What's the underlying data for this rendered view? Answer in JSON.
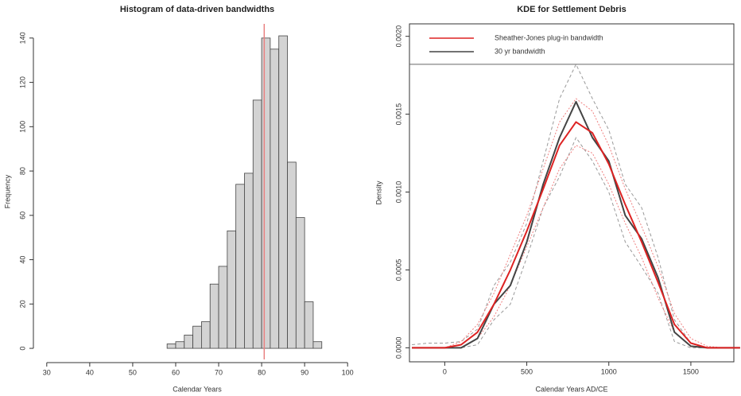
{
  "chart_data": [
    {
      "type": "histogram",
      "title": "Histogram of data-driven bandwidths",
      "x_label": "Calendar Years",
      "y_label": "Frequency",
      "bins": [
        58,
        60,
        62,
        64,
        66,
        68,
        70,
        72,
        74,
        76,
        78,
        80,
        82,
        84,
        86,
        88,
        90,
        92,
        94
      ],
      "counts": [
        2,
        3,
        6,
        10,
        12,
        29,
        37,
        53,
        74,
        79,
        112,
        140,
        135,
        141,
        84,
        59,
        21,
        3
      ],
      "color": "#d3d3d3",
      "vline": 80.6,
      "vline_color": "#e88080",
      "xlim": [
        28,
        102
      ],
      "ylim": [
        -5,
        146.4
      ],
      "xticks": [
        30,
        40,
        50,
        60,
        70,
        80,
        90,
        100
      ],
      "yticks": [
        0,
        20,
        40,
        60,
        80,
        100,
        120,
        140
      ]
    },
    {
      "type": "line",
      "title": "KDE for Settlement Debris",
      "x_label": "Calendar Years AD/CE",
      "y_label": "Density",
      "x": [
        -200,
        -100,
        0,
        100,
        200,
        300,
        400,
        500,
        600,
        700,
        800,
        900,
        1000,
        1100,
        1200,
        1300,
        1400,
        1500,
        1600,
        1700,
        1800
      ],
      "series": [
        {
          "color": "#999999",
          "dash": "4,3",
          "values": [
            2e-05,
            3e-05,
            3e-05,
            4e-05,
            0.00012,
            0.0004,
            0.00055,
            0.0008,
            0.0012,
            0.0016,
            0.00182,
            0.0016,
            0.0014,
            0.00105,
            0.0009,
            0.00058,
            0.00018,
            3e-05,
            0,
            0,
            0
          ]
        },
        {
          "color": "#999999",
          "dash": "4,3",
          "values": [
            0,
            0,
            0,
            0,
            2e-05,
            0.00018,
            0.00028,
            0.00058,
            0.0009,
            0.0011,
            0.00135,
            0.0012,
            0.001,
            0.00068,
            0.00052,
            0.00035,
            4e-05,
            0,
            0,
            0,
            0
          ]
        },
        {
          "color": "#f08080",
          "dash": "2,2",
          "values": [
            0,
            0,
            0,
            4e-05,
            0.00015,
            0.00035,
            0.0006,
            0.00085,
            0.00115,
            0.00145,
            0.0016,
            0.00152,
            0.0013,
            0.00102,
            0.00078,
            0.00052,
            0.00022,
            6e-05,
            1e-05,
            0,
            0
          ]
        },
        {
          "color": "#f08080",
          "dash": "2,2",
          "values": [
            0,
            0,
            0,
            0,
            6e-05,
            0.0002,
            0.0004,
            0.00065,
            0.0009,
            0.00115,
            0.0013,
            0.00125,
            0.00105,
            0.0008,
            0.00058,
            0.00032,
            0.0001,
            1e-05,
            0,
            0,
            0
          ]
        },
        {
          "name": "30 yr bandwidth",
          "color": "#444444",
          "width": 2,
          "values": [
            0,
            0,
            0,
            0,
            6e-05,
            0.00028,
            0.0004,
            0.00068,
            0.00105,
            0.00135,
            0.00158,
            0.00135,
            0.0012,
            0.00085,
            0.0007,
            0.00045,
            0.0001,
            1e-05,
            0,
            0,
            0
          ]
        },
        {
          "name": "Sheather-Jones plug-in bandwidth",
          "color": "#dd2222",
          "width": 2,
          "values": [
            0,
            0,
            0,
            2e-05,
            0.0001,
            0.00028,
            0.0005,
            0.00075,
            0.00102,
            0.0013,
            0.00145,
            0.00138,
            0.00118,
            0.00092,
            0.00068,
            0.00042,
            0.00015,
            3e-05,
            0,
            0,
            0
          ]
        }
      ],
      "hline": 0.00182,
      "legend": "top-left",
      "xlim": [
        -215,
        1762
      ],
      "ylim": [
        -9e-05,
        0.00208
      ],
      "xticks": [
        0,
        500,
        1000,
        1500
      ],
      "yticks": [
        {
          "value": 0,
          "label": "0.0000"
        },
        {
          "value": 0.0005,
          "label": "0.0005"
        },
        {
          "value": 0.001,
          "label": "0.0010"
        },
        {
          "value": 0.0015,
          "label": "0.0015"
        },
        {
          "value": 0.002,
          "label": "0.0020"
        }
      ]
    }
  ]
}
